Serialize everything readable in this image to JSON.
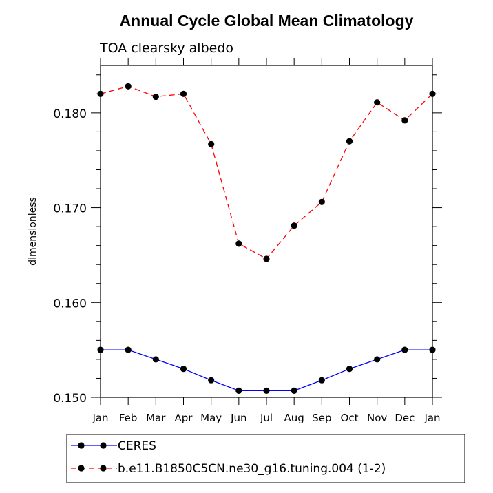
{
  "chart_data": {
    "type": "line",
    "title": "Annual Cycle Global Mean Climatology",
    "subtitle": "TOA clearsky albedo",
    "xlabel": "",
    "ylabel": "dimensionless",
    "categories": [
      "Jan",
      "Feb",
      "Mar",
      "Apr",
      "May",
      "Jun",
      "Jul",
      "Aug",
      "Sep",
      "Oct",
      "Nov",
      "Dec",
      "Jan"
    ],
    "ylim": [
      0.15,
      0.185
    ],
    "yticks": [
      0.15,
      0.16,
      0.17,
      0.18
    ],
    "ytick_labels": [
      "0.150",
      "0.160",
      "0.170",
      "0.180"
    ],
    "grid": false,
    "legend_position": "bottom",
    "series": [
      {
        "name": "CERES",
        "color": "#0000ff",
        "line_style": "solid",
        "marker": "filled-circle",
        "values": [
          0.155,
          0.155,
          0.154,
          0.153,
          0.1518,
          0.1507,
          0.1507,
          0.1507,
          0.1518,
          0.153,
          0.154,
          0.155,
          0.155
        ]
      },
      {
        "name": "b.e11.B1850C5CN.ne30_g16.tuning.004 (1-2)",
        "color": "#ff0000",
        "line_style": "dashed",
        "marker": "filled-circle",
        "values": [
          0.182,
          0.1828,
          0.1817,
          0.182,
          0.1767,
          0.1662,
          0.1646,
          0.1681,
          0.1706,
          0.177,
          0.1811,
          0.1792,
          0.182
        ]
      }
    ]
  }
}
